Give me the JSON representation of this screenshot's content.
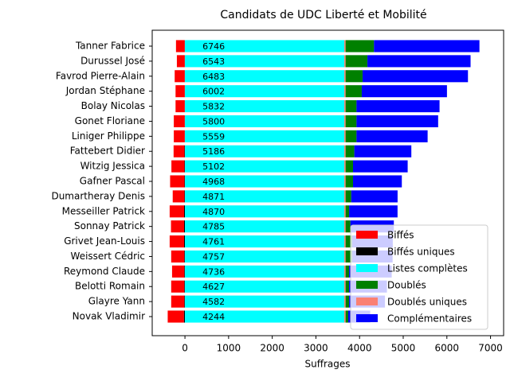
{
  "chart_data": {
    "type": "stacked-barh",
    "title": "Candidats de UDC Liberté et Mobilité",
    "xlabel": "Suffrages",
    "categories": [
      "Tanner Fabrice",
      "Durussel José",
      "Favrod Pierre-Alain",
      "Jordan Stéphane",
      "Bolay Nicolas",
      "Gonet Floriane",
      "Liniger Philippe",
      "Fattebert Didier",
      "Witzig Jessica",
      "Gafner Pascal",
      "Dumartheray Denis",
      "Messeiller Patrick",
      "Sonnay Patrick",
      "Grivet Jean-Louis",
      "Weissert Cédric",
      "Reymond Claude",
      "Belotti Romain",
      "Glayre Yann",
      "Novak Vladimir"
    ],
    "totals": [
      6746,
      6543,
      6483,
      6002,
      5832,
      5800,
      5559,
      5186,
      5102,
      4968,
      4871,
      4870,
      4785,
      4761,
      4757,
      4736,
      4627,
      4582,
      4244
    ],
    "series": [
      {
        "name": "Biffés",
        "color": "#ff0000",
        "values": [
          -200,
          -180,
          -230,
          -210,
          -210,
          -250,
          -250,
          -250,
          -300,
          -330,
          -270,
          -330,
          -300,
          -330,
          -300,
          -280,
          -300,
          -300,
          -370
        ]
      },
      {
        "name": "Biffés uniques",
        "color": "#000000",
        "values": [
          -5,
          -5,
          -5,
          -5,
          -5,
          -5,
          -5,
          -10,
          -10,
          -10,
          -10,
          -20,
          -20,
          -20,
          -15,
          -15,
          -15,
          -15,
          -25
        ]
      },
      {
        "name": "Listes complètes",
        "color": "#00ffff",
        "values": [
          3650,
          3650,
          3650,
          3650,
          3650,
          3650,
          3650,
          3650,
          3650,
          3650,
          3650,
          3650,
          3650,
          3650,
          3650,
          3650,
          3650,
          3650,
          3650
        ]
      },
      {
        "name": "Doublés",
        "color": "#008000",
        "values": [
          650,
          500,
          390,
          370,
          250,
          250,
          250,
          200,
          170,
          170,
          130,
          80,
          110,
          150,
          150,
          80,
          80,
          80,
          60
        ]
      },
      {
        "name": "Doublés uniques",
        "color": "#fa8072",
        "values": [
          30,
          30,
          30,
          30,
          30,
          30,
          30,
          30,
          30,
          30,
          30,
          30,
          30,
          30,
          30,
          30,
          30,
          30,
          30
        ]
      },
      {
        "name": "Complémentaires",
        "color": "#0000ff",
        "values": [
          2416,
          2363,
          2413,
          1952,
          1902,
          1870,
          1629,
          1306,
          1252,
          1118,
          1061,
          1110,
          995,
          931,
          927,
          976,
          867,
          822,
          504
        ]
      }
    ],
    "stack_order": [
      1,
      0,
      2,
      4,
      3,
      5
    ],
    "xlim": [
      -750,
      7300
    ],
    "xticks": [
      0,
      1000,
      2000,
      3000,
      4000,
      5000,
      6000,
      7000
    ],
    "legend": "lower right"
  }
}
